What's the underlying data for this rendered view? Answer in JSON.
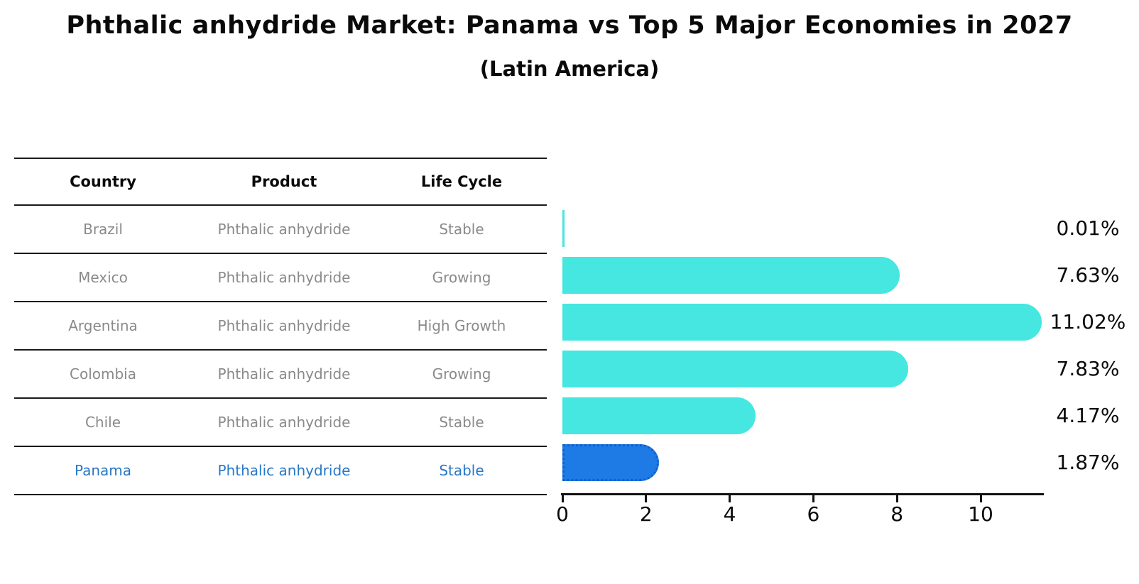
{
  "title": "Phthalic anhydride Market: Panama vs Top 5 Major Economies in 2027",
  "subtitle": "(Latin America)",
  "table": {
    "headers": [
      "Country",
      "Product",
      "Life Cycle"
    ],
    "rows": [
      {
        "country": "Brazil",
        "product": "Phthalic anhydride",
        "life_cycle": "Stable",
        "highlight": false
      },
      {
        "country": "Mexico",
        "product": "Phthalic anhydride",
        "life_cycle": "Growing",
        "highlight": false
      },
      {
        "country": "Argentina",
        "product": "Phthalic anhydride",
        "life_cycle": "High Growth",
        "highlight": false
      },
      {
        "country": "Colombia",
        "product": "Phthalic anhydride",
        "life_cycle": "Growing",
        "highlight": false
      },
      {
        "country": "Chile",
        "product": "Phthalic anhydride",
        "life_cycle": "Stable",
        "highlight": false
      },
      {
        "country": "Panama",
        "product": "Phthalic anhydride",
        "life_cycle": "Stable",
        "highlight": true
      }
    ]
  },
  "chart_data": {
    "type": "bar",
    "orientation": "horizontal",
    "title": "Phthalic anhydride Market: Panama vs Top 5 Major Economies in 2027",
    "subtitle": "(Latin America)",
    "categories": [
      "Brazil",
      "Mexico",
      "Argentina",
      "Colombia",
      "Chile",
      "Panama"
    ],
    "values": [
      0.01,
      7.63,
      11.02,
      7.83,
      4.17,
      1.87
    ],
    "value_labels": [
      "0.01%",
      "7.63%",
      "11.02%",
      "7.83%",
      "4.17%",
      "1.87%"
    ],
    "x_ticks": [
      0,
      2,
      4,
      6,
      8,
      10
    ],
    "xlim": [
      0,
      11.5
    ],
    "grid": false,
    "legend": "none",
    "highlight_index": 5
  },
  "colors": {
    "bar": "#46E6E1",
    "highlight_bar": "#1E7AE4",
    "highlight_text": "#2878C8",
    "row_text": "#8A8A8A",
    "axis": "#111111"
  }
}
